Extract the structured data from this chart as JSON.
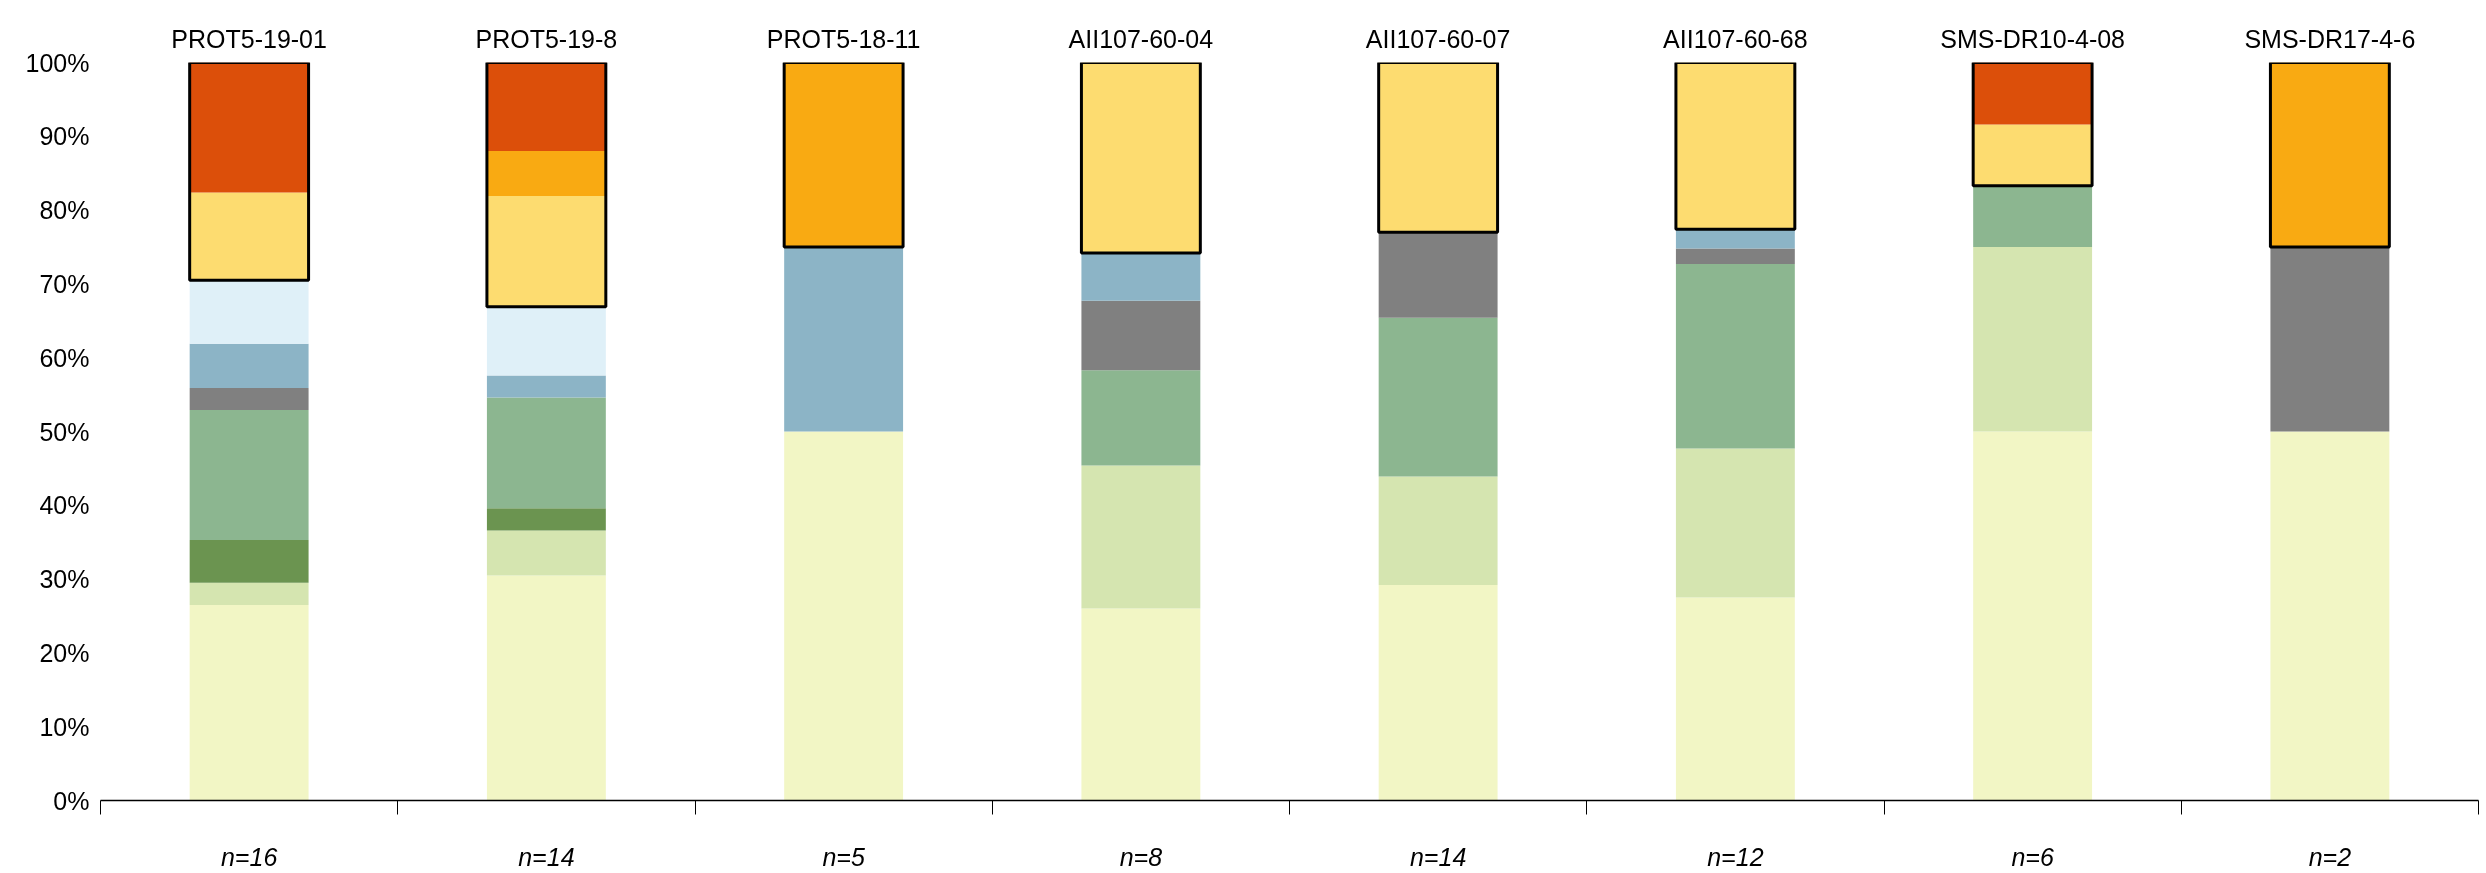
{
  "chart_data": {
    "type": "bar",
    "stacked": true,
    "categories": [
      "PROT5-19-01",
      "PROT5-19-8",
      "PROT5-18-11",
      "AII107-60-04",
      "AII107-60-07",
      "AII107-60-68",
      "SMS-DR10-4-08",
      "SMS-DR17-4-6"
    ],
    "ylim": [
      0,
      100
    ],
    "yticks": [
      {
        "value": 0,
        "label": "0%"
      },
      {
        "value": 10,
        "label": "10%"
      },
      {
        "value": 20,
        "label": "20%"
      },
      {
        "value": 30,
        "label": "30%"
      },
      {
        "value": 40,
        "label": "40%"
      },
      {
        "value": 50,
        "label": "50%"
      },
      {
        "value": 60,
        "label": "60%"
      },
      {
        "value": 70,
        "label": "70%"
      },
      {
        "value": 80,
        "label": "80%"
      },
      {
        "value": 90,
        "label": "90%"
      },
      {
        "value": 100,
        "label": "100%"
      }
    ],
    "grid": false,
    "annotations": [
      "n=16",
      "n=14",
      "n=5",
      "n=8",
      "n=14",
      "n=12",
      "n=6",
      "n=2"
    ],
    "series": [
      {
        "color": "#f2f6c5",
        "values": [
          26.5,
          30.5,
          50,
          26,
          29.2,
          27.5,
          50,
          50
        ]
      },
      {
        "color": "#d5e5b0",
        "values": [
          3,
          6.1,
          null,
          19.4,
          14.7,
          20.2,
          25,
          null
        ]
      },
      {
        "color": "#6b9450",
        "values": [
          5.8,
          3,
          null,
          null,
          null,
          null,
          null,
          null
        ]
      },
      {
        "color": "#8cb690",
        "values": [
          17.6,
          15,
          null,
          12.9,
          21.5,
          25,
          8.3,
          null
        ]
      },
      {
        "color": "#808080",
        "values": [
          3,
          null,
          null,
          9.4,
          11.6,
          2.1,
          null,
          25
        ]
      },
      {
        "color": "#8cb4c6",
        "values": [
          6,
          3,
          25,
          6.5,
          null,
          2.6,
          null,
          null
        ]
      },
      {
        "color": "#dff0f8",
        "values": [
          8.6,
          9.3,
          null,
          null,
          null,
          null,
          null,
          null
        ]
      },
      {
        "color": "#fddc70",
        "values": [
          11.9,
          15,
          null,
          25.8,
          23,
          22.6,
          8.3,
          null
        ]
      },
      {
        "color": "#f9aa12",
        "values": [
          null,
          6.1,
          25,
          null,
          null,
          null,
          null,
          25
        ]
      },
      {
        "color": "#dc4f0a",
        "values": [
          17.6,
          12,
          null,
          null,
          null,
          null,
          8.4,
          null
        ]
      }
    ]
  }
}
